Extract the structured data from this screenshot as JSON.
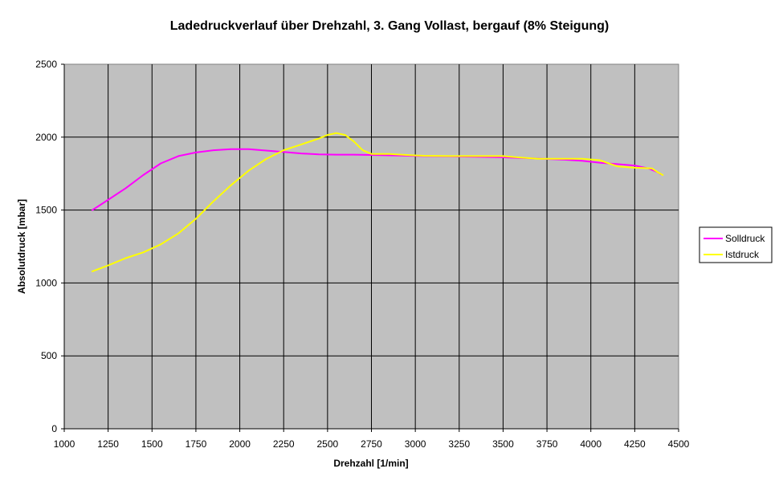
{
  "chart_data": {
    "type": "line",
    "title": "Ladedruckverlauf über Drehzahl, 3. Gang Vollast, bergauf (8% Steigung)",
    "xlabel": "Drehzahl [1/min]",
    "ylabel": "Absolutdruck [mbar]",
    "xlim": [
      1000,
      4500
    ],
    "ylim": [
      0,
      2500
    ],
    "x_ticks": [
      1000,
      1250,
      1500,
      1750,
      2000,
      2250,
      2500,
      2750,
      3000,
      3250,
      3500,
      3750,
      4000,
      4250,
      4500
    ],
    "y_ticks": [
      0,
      500,
      1000,
      1500,
      2000,
      2500
    ],
    "grid": true,
    "plot_background": "#c0c0c0",
    "legend_position": "right",
    "series": [
      {
        "name": "Solldruck",
        "color": "#ff00ff",
        "points": [
          [
            1160,
            1500
          ],
          [
            1250,
            1570
          ],
          [
            1350,
            1650
          ],
          [
            1450,
            1740
          ],
          [
            1550,
            1820
          ],
          [
            1650,
            1870
          ],
          [
            1750,
            1895
          ],
          [
            1850,
            1910
          ],
          [
            1950,
            1918
          ],
          [
            2050,
            1918
          ],
          [
            2150,
            1908
          ],
          [
            2250,
            1898
          ],
          [
            2350,
            1888
          ],
          [
            2450,
            1882
          ],
          [
            2550,
            1880
          ],
          [
            2650,
            1880
          ],
          [
            2750,
            1878
          ],
          [
            2850,
            1875
          ],
          [
            2950,
            1873
          ],
          [
            3050,
            1870
          ],
          [
            3200,
            1868
          ],
          [
            3350,
            1865
          ],
          [
            3500,
            1862
          ],
          [
            3650,
            1855
          ],
          [
            3750,
            1850
          ],
          [
            3850,
            1845
          ],
          [
            3950,
            1838
          ],
          [
            4050,
            1825
          ],
          [
            4150,
            1815
          ],
          [
            4250,
            1805
          ],
          [
            4330,
            1785
          ],
          [
            4380,
            1760
          ],
          [
            4400,
            1745
          ]
        ]
      },
      {
        "name": "Istdruck",
        "color": "#ffff00",
        "points": [
          [
            1160,
            1080
          ],
          [
            1250,
            1120
          ],
          [
            1350,
            1170
          ],
          [
            1450,
            1210
          ],
          [
            1550,
            1265
          ],
          [
            1650,
            1340
          ],
          [
            1750,
            1440
          ],
          [
            1850,
            1560
          ],
          [
            1950,
            1670
          ],
          [
            2050,
            1770
          ],
          [
            2150,
            1850
          ],
          [
            2250,
            1910
          ],
          [
            2350,
            1950
          ],
          [
            2450,
            1990
          ],
          [
            2500,
            2015
          ],
          [
            2550,
            2028
          ],
          [
            2600,
            2015
          ],
          [
            2650,
            1970
          ],
          [
            2700,
            1910
          ],
          [
            2750,
            1885
          ],
          [
            2850,
            1885
          ],
          [
            2950,
            1878
          ],
          [
            3050,
            1872
          ],
          [
            3200,
            1870
          ],
          [
            3350,
            1870
          ],
          [
            3500,
            1870
          ],
          [
            3600,
            1860
          ],
          [
            3700,
            1852
          ],
          [
            3850,
            1852
          ],
          [
            3950,
            1852
          ],
          [
            4050,
            1842
          ],
          [
            4150,
            1800
          ],
          [
            4250,
            1790
          ],
          [
            4300,
            1788
          ],
          [
            4350,
            1785
          ],
          [
            4380,
            1760
          ],
          [
            4410,
            1740
          ]
        ]
      }
    ]
  }
}
